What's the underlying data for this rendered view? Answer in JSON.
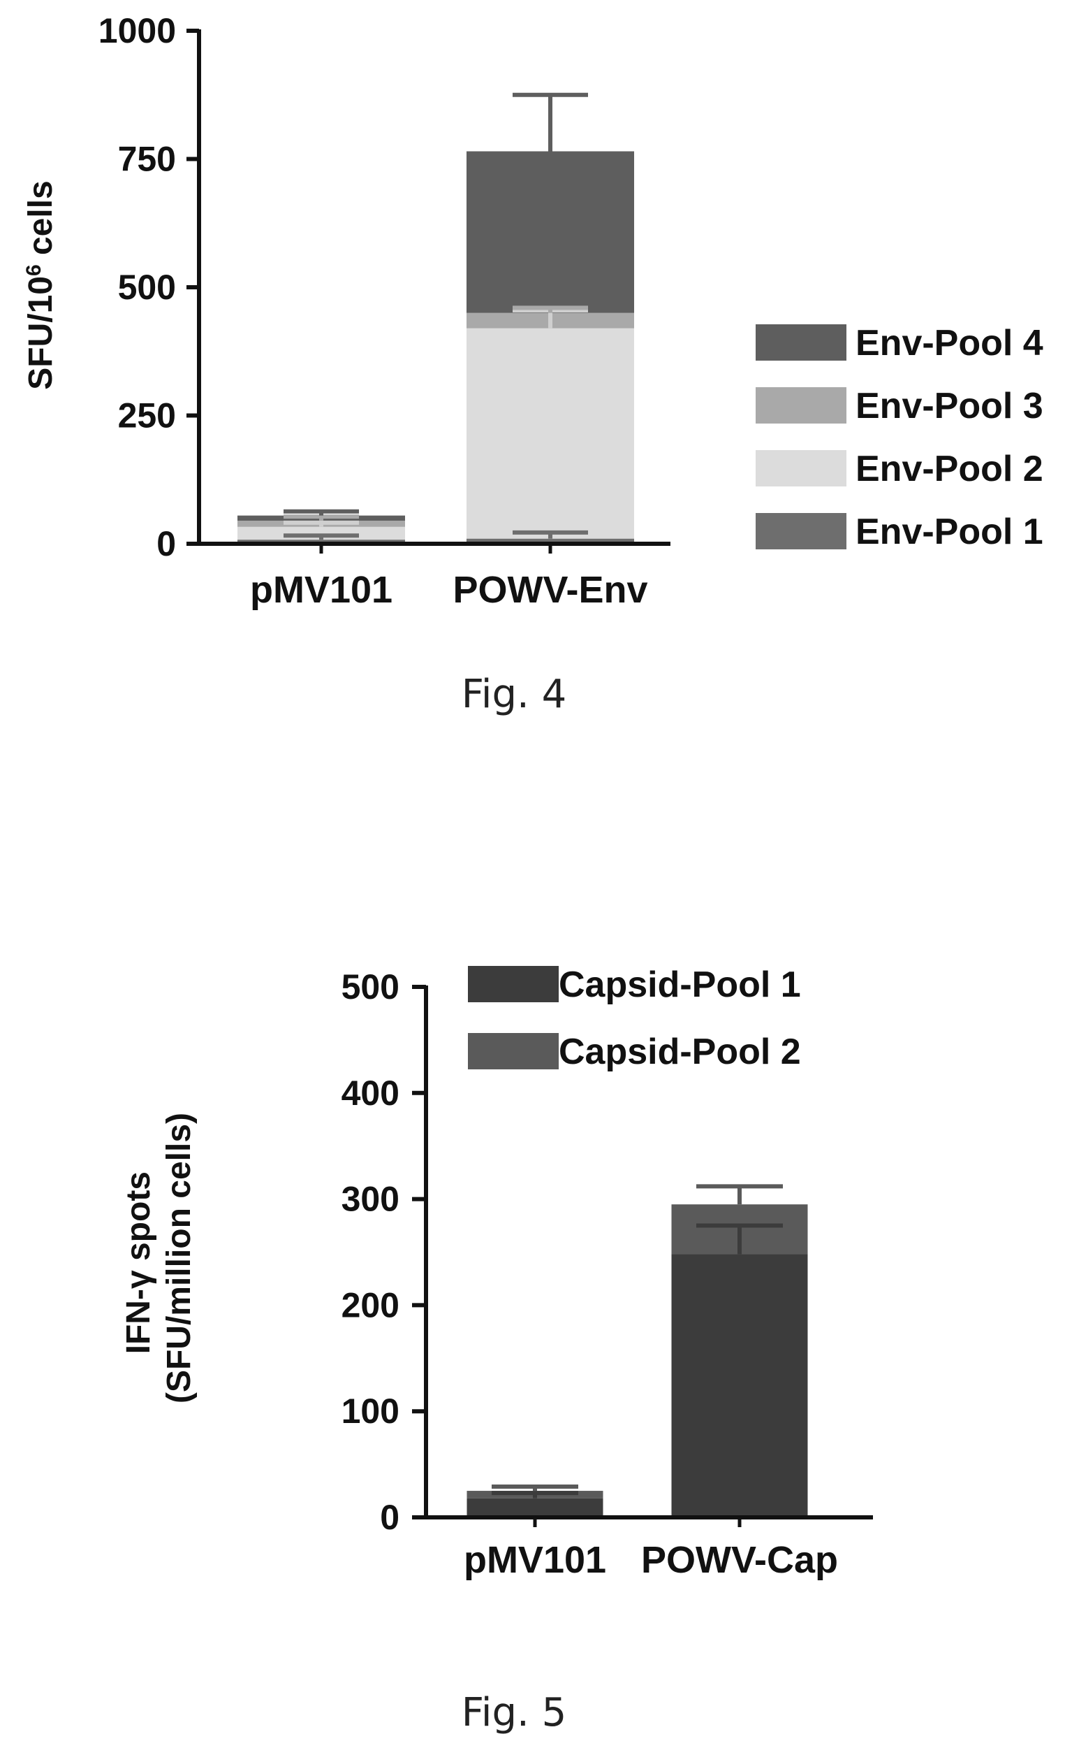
{
  "figures": [
    {
      "caption": "Fig. 4",
      "chart_data": {
        "type": "bar",
        "stacked": true,
        "ylabel_parts": [
          "SFU/10",
          "6",
          " cells"
        ],
        "ylim": [
          0,
          1000
        ],
        "yticks": [
          "0",
          "250",
          "500",
          "750",
          "1000"
        ],
        "categories": [
          "pMV101",
          "POWV-Env"
        ],
        "series": [
          {
            "name": "Env-Pool 1",
            "color": "#6e6e6e",
            "values": [
              8,
              10
            ],
            "errors": [
              8,
              12
            ]
          },
          {
            "name": "Env-Pool 2",
            "color": "#dcdcdc",
            "values": [
              25,
              410
            ],
            "errors": [
              8,
              35
            ]
          },
          {
            "name": "Env-Pool 3",
            "color": "#a9a9a9",
            "values": [
              12,
              30
            ],
            "errors": [
              8,
              10
            ]
          },
          {
            "name": "Env-Pool 4",
            "color": "#5e5e5e",
            "values": [
              10,
              315
            ],
            "errors": [
              8,
              110
            ]
          }
        ],
        "legend_order": [
          "Env-Pool 4",
          "Env-Pool 3",
          "Env-Pool 2",
          "Env-Pool 1"
        ],
        "legend_position": "right",
        "grid": false
      }
    },
    {
      "caption": "Fig. 5",
      "chart_data": {
        "type": "bar",
        "stacked": true,
        "ylabel_lines": [
          "IFN-γ spots",
          "(SFU/million cells)"
        ],
        "ylim": [
          0,
          500
        ],
        "yticks": [
          "0",
          "100",
          "200",
          "300",
          "400",
          "500"
        ],
        "categories": [
          "pMV101",
          "POWV-Cap"
        ],
        "series": [
          {
            "name": "Capsid-Pool 1",
            "color": "#3c3c3c",
            "values": [
              18,
              248
            ],
            "errors": [
              5,
              27
            ]
          },
          {
            "name": "Capsid-Pool 2",
            "color": "#5a5a5a",
            "values": [
              7,
              47
            ],
            "errors": [
              4,
              17
            ]
          }
        ],
        "legend_order": [
          "Capsid-Pool 1",
          "Capsid-Pool 2"
        ],
        "legend_position": "top",
        "grid": false
      }
    }
  ]
}
